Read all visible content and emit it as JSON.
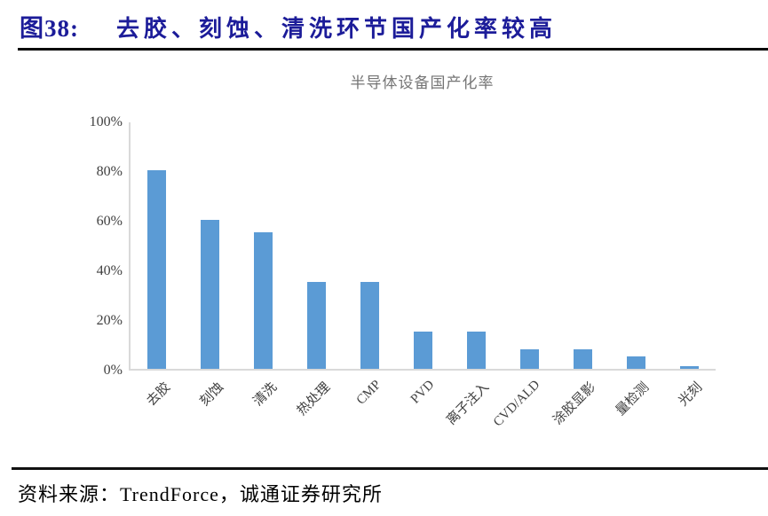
{
  "header": {
    "figure_label": "图38:",
    "title": "去胶、刻蚀、清洗环节国产化率较高"
  },
  "chart_data": {
    "type": "bar",
    "title": "半导体设备国产化率",
    "categories": [
      "去胶",
      "刻蚀",
      "清洗",
      "热处理",
      "CMP",
      "PVD",
      "离子注入",
      "CVD/ALD",
      "涂胶显影",
      "量检测",
      "光刻"
    ],
    "values": [
      80,
      60,
      55,
      35,
      35,
      15,
      15,
      8,
      8,
      5,
      1
    ],
    "unit": "%",
    "ylim": [
      0,
      100
    ],
    "yticks": [
      0,
      20,
      40,
      60,
      80,
      100
    ],
    "ytick_labels": [
      "0%",
      "20%",
      "40%",
      "60%",
      "80%",
      "100%"
    ],
    "grid": false,
    "legend": null
  },
  "footer": {
    "source": "资料来源：TrendForce，诚通证券研究所"
  },
  "colors": {
    "header_title": "#1c1c99",
    "bar": "#5b9bd5",
    "axis_line": "#d9d9d9",
    "chart_title": "#757575",
    "tick_label": "#3f3f3f",
    "rule": "#0a0a0a"
  }
}
